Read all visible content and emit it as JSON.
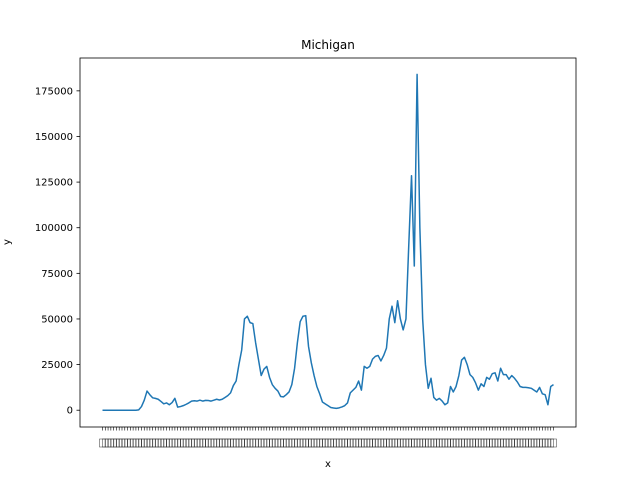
{
  "chart_data": {
    "type": "line",
    "title": "Michigan",
    "xlabel": "x",
    "ylabel": "y",
    "ylim": [
      -9200,
      193000
    ],
    "yticks": [
      0,
      25000,
      50000,
      75000,
      100000,
      125000,
      150000,
      175000
    ],
    "ytick_labels": [
      "0",
      "25000",
      "50000",
      "75000",
      "100000",
      "125000",
      "150000",
      "175000"
    ],
    "grid": false,
    "legend": "none",
    "line_color": "#1f77b4",
    "series": [
      {
        "values": [
          0,
          0,
          0,
          0,
          0,
          0,
          0,
          0,
          0,
          0,
          0,
          0,
          0,
          200,
          2000,
          5500,
          10500,
          8500,
          6800,
          6500,
          6000,
          4800,
          3500,
          4000,
          3000,
          4200,
          6500,
          1700,
          2000,
          2500,
          3200,
          4000,
          5000,
          5200,
          5000,
          5500,
          5000,
          5400,
          5300,
          5000,
          5500,
          6000,
          5600,
          6000,
          7000,
          8000,
          9500,
          13500,
          16000,
          25000,
          33000,
          50000,
          51500,
          48000,
          47500,
          37000,
          28000,
          19000,
          22500,
          24000,
          18000,
          14000,
          12000,
          10500,
          7500,
          7300,
          8500,
          10000,
          14000,
          23000,
          37000,
          48500,
          51500,
          51800,
          35000,
          26000,
          19000,
          13000,
          9000,
          4500,
          3500,
          2500,
          1500,
          1200,
          1000,
          1300,
          1800,
          2500,
          4000,
          9500,
          11000,
          12500,
          16000,
          11000,
          24000,
          23000,
          24000,
          28000,
          29500,
          30000,
          27000,
          30000,
          34000,
          50000,
          57000,
          48000,
          60000,
          50000,
          44000,
          50000,
          90000,
          128500,
          79000,
          184000,
          100000,
          50000,
          25000,
          12000,
          17500,
          7000,
          5500,
          6500,
          5000,
          3000,
          4000,
          13000,
          10000,
          13000,
          19000,
          27500,
          29000,
          25000,
          19500,
          18000,
          15000,
          11000,
          14500,
          13000,
          18000,
          17000,
          20000,
          20500,
          16000,
          23000,
          19500,
          19500,
          17000,
          19000,
          17500,
          15500,
          13000,
          12500,
          12500,
          12300,
          12000,
          11000,
          10000,
          12500,
          9000,
          8500,
          3000,
          13000,
          14000
        ]
      }
    ]
  }
}
